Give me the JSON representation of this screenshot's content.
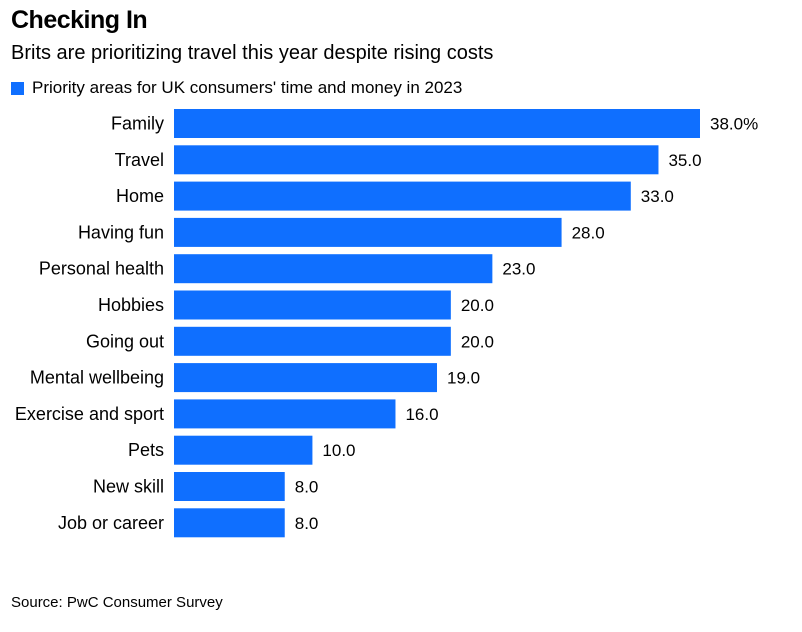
{
  "chart_data": {
    "type": "bar",
    "orientation": "horizontal",
    "title": "Checking In",
    "subtitle": "Brits are prioritizing travel this year despite rising costs",
    "legend": [
      "Priority areas for UK consumers' time and money in 2023"
    ],
    "categories": [
      "Family",
      "Travel",
      "Home",
      "Having fun",
      "Personal health",
      "Hobbies",
      "Going out",
      "Mental wellbeing",
      "Exercise and sport",
      "Pets",
      "New skill",
      "Job or career"
    ],
    "values": [
      38.0,
      35.0,
      33.0,
      28.0,
      23.0,
      20.0,
      20.0,
      19.0,
      16.0,
      10.0,
      8.0,
      8.0
    ],
    "value_labels": [
      "38.0%",
      "35.0",
      "33.0",
      "28.0",
      "23.0",
      "20.0",
      "20.0",
      "19.0",
      "16.0",
      "10.0",
      "8.0",
      "8.0"
    ],
    "xlim": [
      0,
      38
    ],
    "grid": false,
    "bar_color": "#0f6fff",
    "source": "Source: PwC Consumer Survey"
  }
}
